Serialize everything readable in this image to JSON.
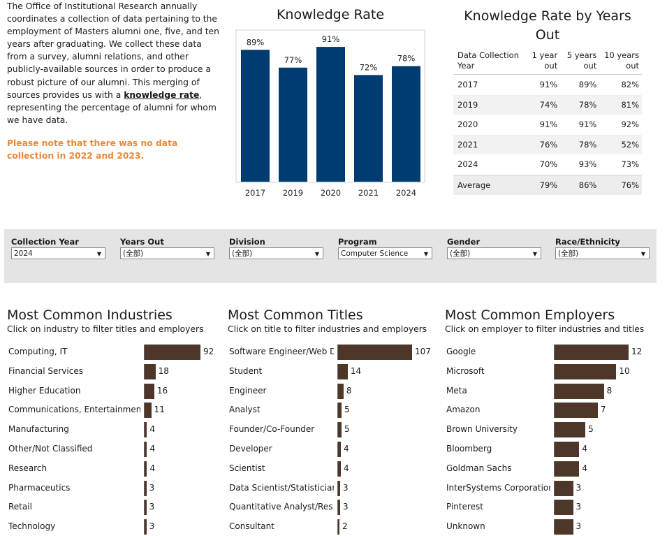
{
  "intro": {
    "text_before": "The Office of Institutional Research annually coordinates a collection of data pertaining to the employment of Masters alumni one, five, and ten years after graduating. We collect these data from a survey, alumni relations, and other publicly-available sources in order to produce a robust picture of our alumni. This merging of sources provides us with a ",
    "link": "knowledge rate",
    "text_after": ", representing the percentage of alumni for whom we have data.",
    "note": "Please note that there was no data collection in 2022 and 2023."
  },
  "colors": {
    "bar_navy": "#003b71",
    "bar_brown": "#4e3629",
    "note_orange": "#e8893a",
    "filter_bg": "#e4e4e4"
  },
  "knowledge_rate": {
    "title": "Knowledge Rate"
  },
  "chart_data": {
    "type": "bar",
    "title": "Knowledge Rate",
    "categories": [
      "2017",
      "2019",
      "2020",
      "2021",
      "2024"
    ],
    "values": [
      89,
      77,
      91,
      72,
      78
    ],
    "labels": [
      "89%",
      "77%",
      "91%",
      "72%",
      "78%"
    ],
    "ylim": [
      0,
      100
    ],
    "xlabel": "",
    "ylabel": ""
  },
  "years_out": {
    "title": "Knowledge Rate by Years Out",
    "headers": [
      "Data Collection Year",
      "1 year out",
      "5 years out",
      "10 years out"
    ],
    "rows": [
      [
        "2017",
        "91%",
        "89%",
        "82%"
      ],
      [
        "2019",
        "74%",
        "78%",
        "81%"
      ],
      [
        "2020",
        "91%",
        "91%",
        "92%"
      ],
      [
        "2021",
        "76%",
        "78%",
        "52%"
      ],
      [
        "2024",
        "70%",
        "93%",
        "73%"
      ]
    ],
    "average": [
      "Average",
      "79%",
      "86%",
      "76%"
    ]
  },
  "filters": [
    {
      "label": "Collection Year",
      "value": "2024"
    },
    {
      "label": "Years Out",
      "value": "(全部)"
    },
    {
      "label": "Division",
      "value": "(全部)"
    },
    {
      "label": "Program",
      "value": "Computer Science"
    },
    {
      "label": "Gender",
      "value": "(全部)"
    },
    {
      "label": "Race/Ethnicity",
      "value": "(全部)"
    }
  ],
  "industries": {
    "title": "Most Common Industries",
    "subtitle": "Click on industry to filter titles and employers",
    "items": [
      {
        "label": "Computing, IT",
        "value": 92
      },
      {
        "label": "Financial Services",
        "value": 18
      },
      {
        "label": "Higher Education",
        "value": 16
      },
      {
        "label": "Communications, Entertainment",
        "value": 11
      },
      {
        "label": "Manufacturing",
        "value": 4
      },
      {
        "label": "Other/Not Classified",
        "value": 4
      },
      {
        "label": "Research",
        "value": 4
      },
      {
        "label": "Pharmaceutics",
        "value": 3
      },
      {
        "label": "Retail",
        "value": 3
      },
      {
        "label": "Technology",
        "value": 3
      }
    ]
  },
  "titles": {
    "title": "Most Common Titles",
    "subtitle": "Click on title to filter industries and employers",
    "items": [
      {
        "label": "Software Engineer/Web D..",
        "value": 107
      },
      {
        "label": "Student",
        "value": 14
      },
      {
        "label": "Engineer",
        "value": 8
      },
      {
        "label": "Analyst",
        "value": 5
      },
      {
        "label": "Founder/Co-Founder",
        "value": 5
      },
      {
        "label": "Developer",
        "value": 4
      },
      {
        "label": "Scientist",
        "value": 4
      },
      {
        "label": "Data Scientist/Statistician",
        "value": 3
      },
      {
        "label": "Quantitative Analyst/Res..",
        "value": 3
      },
      {
        "label": "Consultant",
        "value": 2
      }
    ]
  },
  "employers": {
    "title": "Most Common Employers",
    "subtitle": "Click on employer to filter industries and titles",
    "items": [
      {
        "label": "Google",
        "value": 12
      },
      {
        "label": "Microsoft",
        "value": 10
      },
      {
        "label": "Meta",
        "value": 8
      },
      {
        "label": "Amazon",
        "value": 7
      },
      {
        "label": "Brown University",
        "value": 5
      },
      {
        "label": "Bloomberg",
        "value": 4
      },
      {
        "label": "Goldman Sachs",
        "value": 4
      },
      {
        "label": "InterSystems Corporation",
        "value": 3
      },
      {
        "label": "Pinterest",
        "value": 3
      },
      {
        "label": "Unknown",
        "value": 3
      }
    ]
  }
}
